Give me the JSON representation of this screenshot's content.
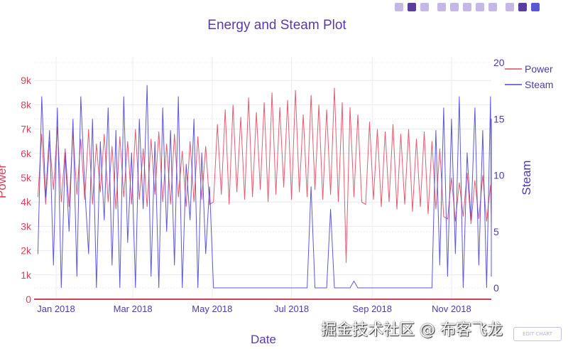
{
  "toolbar": {
    "icons": [
      "camera-icon",
      "zoom-icon",
      "pan-icon",
      "zoom-in-icon",
      "zoom-out-icon",
      "autoscale-icon",
      "reset-axes-icon",
      "spike-lines-icon",
      "hover-closest-icon",
      "hover-compare-icon",
      "plotly-logo-icon"
    ]
  },
  "edit_chart_label": "EDIT CHART",
  "watermark": "掘金技术社区 @ 布客飞龙",
  "colors": {
    "power": "#e04a63",
    "steam": "#4b45d6",
    "title": "#5a3aa6",
    "left_axis": "#d0435b",
    "right_axis": "#4b3bb0",
    "grid": "#e6e6ee"
  },
  "chart_data": {
    "type": "line",
    "title": "Energy and Steam Plot",
    "xlabel": "Date",
    "ylabel": "Power",
    "y2label": "Steam",
    "x_start": "2017-12-18",
    "x_step_days": 3,
    "x_ticks": [
      {
        "date": "2018-01-01",
        "label": "Jan 2018"
      },
      {
        "date": "2018-03-01",
        "label": "Mar 2018"
      },
      {
        "date": "2018-05-01",
        "label": "May 2018"
      },
      {
        "date": "2018-07-01",
        "label": "Jul 2018"
      },
      {
        "date": "2018-09-01",
        "label": "Sep 2018"
      },
      {
        "date": "2018-11-01",
        "label": "Nov 2018"
      }
    ],
    "ylim": [
      0,
      9600
    ],
    "y_ticks": [
      {
        "v": 0,
        "label": "0"
      },
      {
        "v": 1000,
        "label": "1k"
      },
      {
        "v": 2000,
        "label": "2k"
      },
      {
        "v": 3000,
        "label": "3k"
      },
      {
        "v": 4000,
        "label": "4k"
      },
      {
        "v": 5000,
        "label": "5k"
      },
      {
        "v": 6000,
        "label": "6k"
      },
      {
        "v": 7000,
        "label": "7k"
      },
      {
        "v": 8000,
        "label": "8k"
      },
      {
        "v": 9000,
        "label": "9k"
      }
    ],
    "y2lim": [
      0,
      20
    ],
    "y2_ticks": [
      {
        "v": 0,
        "label": "0"
      },
      {
        "v": 5,
        "label": "5"
      },
      {
        "v": 10,
        "label": "10"
      },
      {
        "v": 15,
        "label": "15"
      },
      {
        "v": 20,
        "label": "20"
      }
    ],
    "legend": {
      "placement": "top-right"
    },
    "series": [
      {
        "name": "Power",
        "axis": "y",
        "values": [
          4200,
          6800,
          3900,
          6500,
          4500,
          7100,
          4000,
          6200,
          3800,
          6900,
          4300,
          6600,
          4100,
          7000,
          3900,
          6400,
          4400,
          6800,
          4000,
          6300,
          3700,
          6700,
          4200,
          6500,
          3900,
          7000,
          4100,
          6200,
          3800,
          6600,
          4300,
          6900,
          4000,
          6400,
          3900,
          6800,
          4200,
          6100,
          3800,
          6500,
          4000,
          6700,
          4100,
          6300,
          3900,
          4000,
          7200,
          4300,
          7800,
          3900,
          8000,
          4400,
          7500,
          4100,
          8300,
          4200,
          7700,
          4500,
          8100,
          4000,
          8500,
          4300,
          7900,
          4600,
          8200,
          4100,
          8600,
          4400,
          7600,
          4200,
          8400,
          4500,
          8000,
          4100,
          7800,
          4300,
          8700,
          4000,
          8100,
          1500,
          7900,
          4200,
          7600,
          4000,
          3900,
          7300,
          4100,
          7000,
          3800,
          6900,
          4000,
          7200,
          3700,
          6800,
          3900,
          7000,
          3600,
          6600,
          3800,
          6900,
          3500,
          6500,
          3700,
          6200,
          3400,
          3300,
          5000,
          3200,
          4800,
          3400,
          5200,
          3100,
          4900,
          3300,
          5100,
          3200,
          4700,
          3400,
          5000,
          3100,
          4800,
          3300
        ]
      },
      {
        "name": "Steam",
        "axis": "y2",
        "values": [
          3,
          17,
          8,
          14,
          2,
          16,
          0,
          12,
          5,
          15,
          1,
          17,
          9,
          3,
          15,
          0,
          13,
          6,
          16,
          2,
          14,
          0,
          17,
          4,
          12,
          0,
          15,
          7,
          18,
          1,
          13,
          0,
          16,
          5,
          14,
          2,
          17,
          0,
          11,
          6,
          15,
          0,
          12,
          3,
          9,
          0,
          0,
          0,
          0,
          0,
          0,
          0,
          0,
          0,
          0,
          0,
          0,
          0,
          0,
          0,
          0,
          0,
          0,
          0,
          0,
          0,
          0,
          0,
          0,
          0,
          9,
          0,
          0,
          0,
          0,
          7,
          0,
          0,
          0,
          0,
          0,
          0.6,
          0,
          0,
          0,
          0,
          0,
          0,
          0,
          0,
          0,
          0,
          0,
          0,
          0,
          0,
          0,
          0,
          0,
          0,
          0,
          0,
          14,
          2,
          16,
          1,
          15,
          3,
          17,
          0,
          12,
          6,
          16,
          2,
          14,
          0,
          17,
          5,
          13,
          1,
          15,
          4
        ]
      }
    ]
  }
}
